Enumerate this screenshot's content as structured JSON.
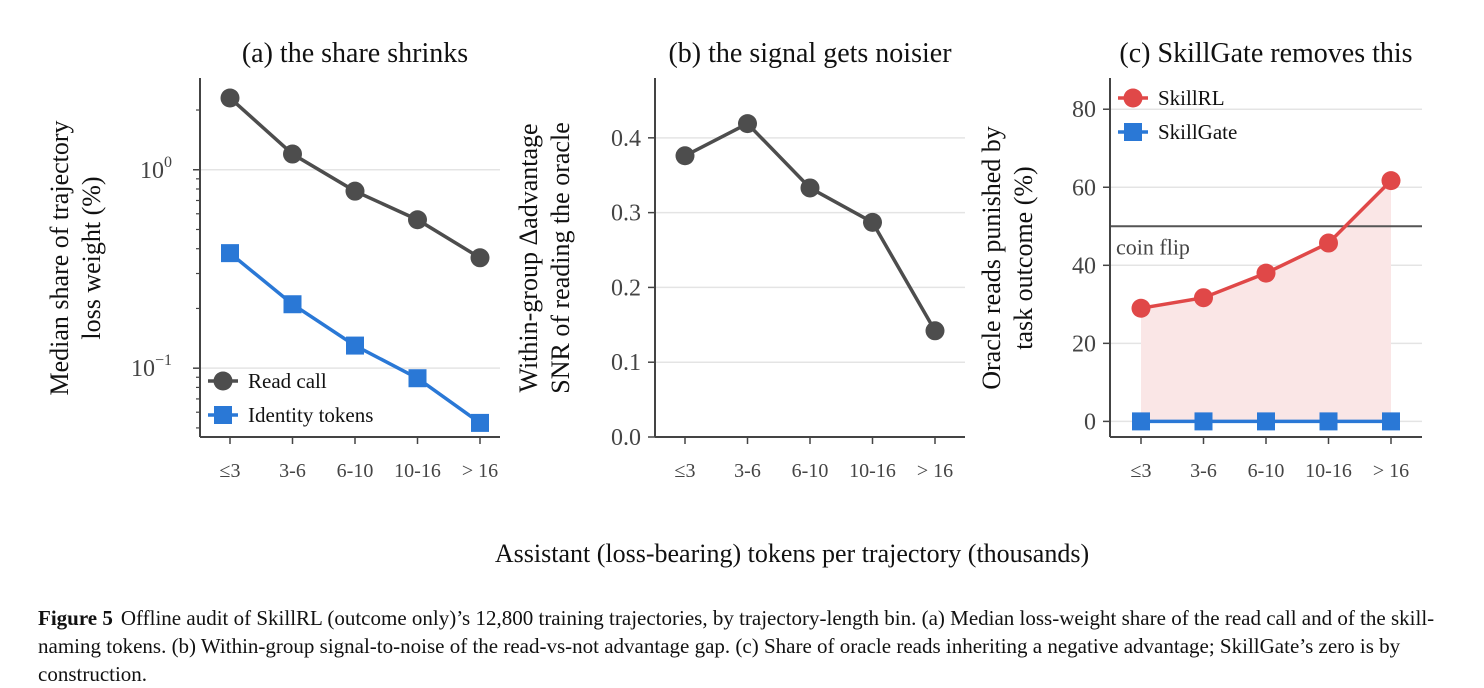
{
  "figure": {
    "shared_xlabel": "Assistant (loss-bearing) tokens per trajectory (thousands)",
    "caption_label": "Figure 5",
    "caption_text": "Offline audit of SkillRL (outcome only)’s 12,800 training trajectories, by trajectory-length bin. (a) Median loss-weight share of the read call and of the skill-naming tokens. (b) Within-group signal-to-noise of the read-vs-not advantage gap. (c) Share of oracle reads inheriting a negative advantage; SkillGate’s zero is by construction."
  },
  "colors": {
    "dark": "#4d4d4d",
    "blue": "#2a78d6",
    "red": "#e04848",
    "fill": "#fae6e6",
    "grid": "#e4e4e4"
  },
  "chart_data": [
    {
      "type": "line",
      "title": "(a) the share shrinks",
      "ylabel": [
        "Median share of trajectory",
        "loss weight (%)"
      ],
      "yscale": "log",
      "ylim": [
        0.045,
        2.9
      ],
      "yticks": [
        {
          "value": 0.1,
          "base": "10",
          "exp": "−1"
        },
        {
          "value": 1,
          "base": "10",
          "exp": "0"
        }
      ],
      "categories": [
        "≤3",
        "3-6",
        "6-10",
        "10-16",
        "> 16"
      ],
      "series": [
        {
          "name": "Read call",
          "marker": "circle",
          "color": "#4d4d4d",
          "values": [
            2.3,
            1.2,
            0.78,
            0.56,
            0.36
          ]
        },
        {
          "name": "Identity tokens",
          "marker": "square",
          "color": "#2a78d6",
          "values": [
            0.38,
            0.21,
            0.13,
            0.089,
            0.053
          ]
        }
      ],
      "legend": "bottom-left"
    },
    {
      "type": "line",
      "title": "(b) the signal gets noisier",
      "ylabel": [
        "Within-group Δadvantage",
        "SNR of reading the oracle"
      ],
      "ylim": [
        0,
        0.48
      ],
      "yticks": [
        0.0,
        0.1,
        0.2,
        0.3,
        0.4
      ],
      "ytick_labels": [
        "0.0",
        "0.1",
        "0.2",
        "0.3",
        "0.4"
      ],
      "categories": [
        "≤3",
        "3-6",
        "6-10",
        "10-16",
        "> 16"
      ],
      "series": [
        {
          "marker": "circle",
          "color": "#4d4d4d",
          "values": [
            0.376,
            0.419,
            0.333,
            0.287,
            0.142
          ]
        }
      ]
    },
    {
      "type": "line",
      "title": "(c) SkillGate removes this",
      "ylabel": [
        "Oracle reads punished by",
        "task outcome (%)"
      ],
      "ylim": [
        -4,
        88
      ],
      "yticks": [
        0,
        20,
        40,
        60,
        80
      ],
      "ytick_labels": [
        "0",
        "20",
        "40",
        "60",
        "80"
      ],
      "categories": [
        "≤3",
        "3-6",
        "6-10",
        "10-16",
        "> 16"
      ],
      "series": [
        {
          "name": "SkillRL",
          "marker": "circle",
          "color": "#e04848",
          "values": [
            29,
            31.7,
            38,
            45.7,
            61.7
          ],
          "fill_to_zero": true
        },
        {
          "name": "SkillGate",
          "marker": "square",
          "color": "#2a78d6",
          "values": [
            0,
            0,
            0,
            0,
            0
          ]
        }
      ],
      "hline": {
        "value": 50,
        "label": "coin flip"
      },
      "legend": "top-left"
    }
  ]
}
